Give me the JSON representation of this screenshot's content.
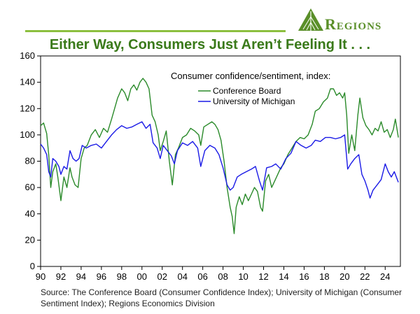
{
  "brand": {
    "name": "Regions",
    "accent_color": "#5a8f29",
    "rule_color": "#8cbf3f",
    "logo_icon": "triangle-mark-icon"
  },
  "header": {
    "title": "Either Way, Consumers Just Aren’t Feeling It . . ."
  },
  "footer": {
    "source": "Source: The Conference Board (Consumer Confidence Index); University of Michigan (Consumer Sentiment Index); Regions Economics Division"
  },
  "chart_data": {
    "type": "line",
    "title": "Consumer confidence/sentiment, index:",
    "xlabel": "",
    "ylabel": "",
    "xlim": [
      1990,
      2025.5
    ],
    "ylim": [
      0,
      160
    ],
    "yticks": [
      0,
      20,
      40,
      60,
      80,
      100,
      120,
      140,
      160
    ],
    "xticks": [
      1990,
      1992,
      1994,
      1996,
      1998,
      2000,
      2002,
      2004,
      2006,
      2008,
      2010,
      2012,
      2014,
      2016,
      2018,
      2020,
      2022,
      2024
    ],
    "xtick_labels": [
      "90",
      "92",
      "94",
      "96",
      "98",
      "00",
      "02",
      "04",
      "06",
      "08",
      "10",
      "12",
      "14",
      "16",
      "18",
      "20",
      "22",
      "24"
    ],
    "grid": false,
    "legend_position": "top-center",
    "series": [
      {
        "name": "Conference Board",
        "color": "#2a8a2a",
        "x": [
          1990,
          1990.3,
          1990.6,
          1990.8,
          1991,
          1991.2,
          1991.5,
          1991.7,
          1992,
          1992.3,
          1992.6,
          1992.9,
          1993.1,
          1993.4,
          1993.7,
          1994,
          1994.3,
          1994.6,
          1995,
          1995.4,
          1995.8,
          1996.2,
          1996.6,
          1997,
          1997.3,
          1997.6,
          1998,
          1998.3,
          1998.6,
          1998.9,
          1999.2,
          1999.5,
          1999.8,
          2000.1,
          2000.4,
          2000.7,
          2001,
          2001.3,
          2001.6,
          2001.8,
          2002.1,
          2002.4,
          2002.7,
          2003,
          2003.3,
          2003.6,
          2004,
          2004.4,
          2004.8,
          2005.2,
          2005.6,
          2005.8,
          2006.1,
          2006.5,
          2006.9,
          2007.2,
          2007.5,
          2007.8,
          2008.1,
          2008.4,
          2008.7,
          2008.9,
          2009.1,
          2009.3,
          2009.6,
          2009.9,
          2010.2,
          2010.5,
          2010.8,
          2011.1,
          2011.4,
          2011.7,
          2011.9,
          2012.2,
          2012.5,
          2012.8,
          2013.1,
          2013.4,
          2013.7,
          2014,
          2014.4,
          2014.8,
          2015.2,
          2015.6,
          2016,
          2016.4,
          2016.8,
          2017.1,
          2017.5,
          2017.9,
          2018.3,
          2018.6,
          2018.9,
          2019.2,
          2019.5,
          2019.8,
          2020,
          2020.2,
          2020.4,
          2020.7,
          2021,
          2021.3,
          2021.5,
          2021.8,
          2022.1,
          2022.4,
          2022.7,
          2023,
          2023.3,
          2023.6,
          2023.9,
          2024.2,
          2024.5,
          2024.8,
          2025,
          2025.3
        ],
        "values": [
          107,
          109,
          101,
          85,
          60,
          72,
          78,
          68,
          50,
          68,
          60,
          75,
          68,
          62,
          60,
          82,
          90,
          92,
          100,
          104,
          98,
          105,
          102,
          112,
          120,
          128,
          135,
          132,
          126,
          135,
          138,
          134,
          140,
          143,
          140,
          135,
          115,
          110,
          100,
          88,
          95,
          103,
          80,
          62,
          85,
          90,
          98,
          100,
          105,
          103,
          100,
          92,
          106,
          108,
          110,
          108,
          104,
          96,
          80,
          60,
          45,
          38,
          25,
          45,
          53,
          47,
          55,
          50,
          55,
          60,
          57,
          45,
          42,
          65,
          70,
          60,
          65,
          70,
          75,
          78,
          85,
          90,
          95,
          98,
          97,
          100,
          108,
          118,
          120,
          125,
          128,
          135,
          135,
          130,
          132,
          128,
          132,
          115,
          86,
          100,
          88,
          115,
          128,
          113,
          107,
          104,
          100,
          105,
          103,
          110,
          102,
          104,
          98,
          104,
          112,
          98
        ]
      },
      {
        "name": "University of Michigan",
        "color": "#1a1ae6",
        "x": [
          1990,
          1990.3,
          1990.6,
          1990.8,
          1991,
          1991.2,
          1991.5,
          1991.8,
          1992,
          1992.3,
          1992.6,
          1992.9,
          1993.2,
          1993.5,
          1993.8,
          1994.1,
          1994.5,
          1995,
          1995.5,
          1996,
          1996.5,
          1997,
          1997.5,
          1998,
          1998.5,
          1999,
          1999.5,
          2000,
          2000.4,
          2000.8,
          2001.1,
          2001.5,
          2001.8,
          2002.1,
          2002.5,
          2002.9,
          2003.2,
          2003.5,
          2004,
          2004.5,
          2005,
          2005.5,
          2005.8,
          2006.2,
          2006.7,
          2007.2,
          2007.6,
          2008,
          2008.4,
          2008.7,
          2009,
          2009.4,
          2009.8,
          2010.3,
          2010.8,
          2011.2,
          2011.6,
          2011.9,
          2012.3,
          2012.8,
          2013.2,
          2013.7,
          2014.2,
          2014.7,
          2015.2,
          2015.7,
          2016.2,
          2016.7,
          2017.1,
          2017.6,
          2018.1,
          2018.6,
          2019.1,
          2019.6,
          2020,
          2020.3,
          2020.6,
          2021,
          2021.4,
          2021.7,
          2022,
          2022.3,
          2022.5,
          2022.8,
          2023.2,
          2023.6,
          2024,
          2024.3,
          2024.6,
          2024.9,
          2025.1,
          2025.3
        ],
        "values": [
          93,
          90,
          85,
          72,
          68,
          82,
          80,
          76,
          70,
          76,
          74,
          88,
          82,
          80,
          82,
          92,
          90,
          92,
          93,
          90,
          95,
          100,
          104,
          107,
          105,
          106,
          108,
          110,
          105,
          108,
          94,
          90,
          82,
          92,
          88,
          84,
          78,
          88,
          94,
          92,
          95,
          90,
          76,
          88,
          92,
          90,
          85,
          75,
          62,
          58,
          60,
          68,
          70,
          72,
          74,
          76,
          65,
          58,
          75,
          76,
          78,
          74,
          82,
          86,
          95,
          92,
          90,
          92,
          96,
          95,
          98,
          98,
          97,
          98,
          100,
          74,
          78,
          82,
          85,
          70,
          65,
          58,
          52,
          58,
          62,
          66,
          78,
          72,
          68,
          72,
          68,
          64
        ]
      }
    ]
  }
}
